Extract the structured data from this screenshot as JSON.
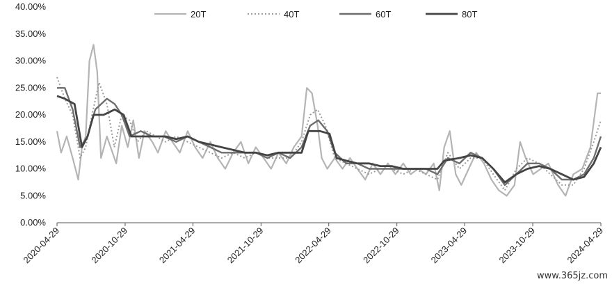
{
  "chart_data": {
    "type": "line",
    "title": "",
    "xlabel": "",
    "ylabel": "",
    "ylim": [
      0,
      0.4
    ],
    "y_ticks": [
      "0.00%",
      "5.00%",
      "10.00%",
      "15.00%",
      "20.00%",
      "25.00%",
      "30.00%",
      "35.00%",
      "40.00%"
    ],
    "x_ticks": [
      "2020-04-29",
      "2020-10-29",
      "2021-04-29",
      "2021-10-29",
      "2022-04-29",
      "2022-10-29",
      "2023-04-29",
      "2023-10-29",
      "2024-04-29"
    ],
    "legend_position": "top",
    "grid": false,
    "series": [
      {
        "name": "20T",
        "color": "#b4b4b4",
        "dash": "solid",
        "points": [
          [
            "2020-04-29",
            0.17
          ],
          [
            "2020-05-10",
            0.13
          ],
          [
            "2020-05-25",
            0.16
          ],
          [
            "2020-06-10",
            0.12
          ],
          [
            "2020-06-25",
            0.08
          ],
          [
            "2020-07-05",
            0.14
          ],
          [
            "2020-07-15",
            0.16
          ],
          [
            "2020-07-25",
            0.3
          ],
          [
            "2020-08-05",
            0.33
          ],
          [
            "2020-08-15",
            0.28
          ],
          [
            "2020-08-25",
            0.12
          ],
          [
            "2020-09-10",
            0.16
          ],
          [
            "2020-09-25",
            0.13
          ],
          [
            "2020-10-05",
            0.11
          ],
          [
            "2020-10-20",
            0.18
          ],
          [
            "2020-11-05",
            0.14
          ],
          [
            "2020-11-20",
            0.19
          ],
          [
            "2020-12-05",
            0.12
          ],
          [
            "2020-12-20",
            0.17
          ],
          [
            "2021-01-10",
            0.15
          ],
          [
            "2021-01-25",
            0.13
          ],
          [
            "2021-02-15",
            0.17
          ],
          [
            "2021-03-05",
            0.15
          ],
          [
            "2021-03-25",
            0.13
          ],
          [
            "2021-04-15",
            0.17
          ],
          [
            "2021-05-05",
            0.14
          ],
          [
            "2021-05-25",
            0.12
          ],
          [
            "2021-06-15",
            0.15
          ],
          [
            "2021-07-05",
            0.12
          ],
          [
            "2021-07-25",
            0.1
          ],
          [
            "2021-08-15",
            0.13
          ],
          [
            "2021-09-05",
            0.15
          ],
          [
            "2021-09-25",
            0.11
          ],
          [
            "2021-10-15",
            0.14
          ],
          [
            "2021-11-05",
            0.12
          ],
          [
            "2021-11-25",
            0.1
          ],
          [
            "2021-12-15",
            0.13
          ],
          [
            "2022-01-05",
            0.11
          ],
          [
            "2022-01-25",
            0.14
          ],
          [
            "2022-02-15",
            0.16
          ],
          [
            "2022-03-01",
            0.25
          ],
          [
            "2022-03-15",
            0.24
          ],
          [
            "2022-03-30",
            0.18
          ],
          [
            "2022-04-10",
            0.12
          ],
          [
            "2022-04-25",
            0.1
          ],
          [
            "2022-05-15",
            0.12
          ],
          [
            "2022-06-05",
            0.1
          ],
          [
            "2022-06-25",
            0.12
          ],
          [
            "2022-07-15",
            0.1
          ],
          [
            "2022-08-05",
            0.08
          ],
          [
            "2022-08-25",
            0.11
          ],
          [
            "2022-09-15",
            0.09
          ],
          [
            "2022-10-05",
            0.11
          ],
          [
            "2022-10-25",
            0.09
          ],
          [
            "2022-11-15",
            0.11
          ],
          [
            "2022-12-05",
            0.09
          ],
          [
            "2022-12-25",
            0.1
          ],
          [
            "2023-01-15",
            0.09
          ],
          [
            "2023-02-05",
            0.11
          ],
          [
            "2023-02-20",
            0.06
          ],
          [
            "2023-03-05",
            0.14
          ],
          [
            "2023-03-20",
            0.17
          ],
          [
            "2023-04-05",
            0.09
          ],
          [
            "2023-04-20",
            0.07
          ],
          [
            "2023-05-10",
            0.1
          ],
          [
            "2023-05-30",
            0.13
          ],
          [
            "2023-06-20",
            0.11
          ],
          [
            "2023-07-10",
            0.08
          ],
          [
            "2023-07-30",
            0.06
          ],
          [
            "2023-08-20",
            0.05
          ],
          [
            "2023-09-10",
            0.07
          ],
          [
            "2023-09-25",
            0.15
          ],
          [
            "2023-10-10",
            0.12
          ],
          [
            "2023-10-30",
            0.09
          ],
          [
            "2023-11-20",
            0.1
          ],
          [
            "2023-12-10",
            0.11
          ],
          [
            "2024-01-05",
            0.07
          ],
          [
            "2024-01-25",
            0.05
          ],
          [
            "2024-02-15",
            0.09
          ],
          [
            "2024-03-10",
            0.1
          ],
          [
            "2024-04-01",
            0.14
          ],
          [
            "2024-04-20",
            0.24
          ],
          [
            "2024-04-29",
            0.24
          ]
        ]
      },
      {
        "name": "40T",
        "color": "#9a9a9a",
        "dash": "dotted",
        "points": [
          [
            "2020-04-29",
            0.27
          ],
          [
            "2020-05-20",
            0.23
          ],
          [
            "2020-06-10",
            0.2
          ],
          [
            "2020-06-30",
            0.12
          ],
          [
            "2020-07-15",
            0.14
          ],
          [
            "2020-08-01",
            0.2
          ],
          [
            "2020-08-20",
            0.26
          ],
          [
            "2020-09-10",
            0.22
          ],
          [
            "2020-09-30",
            0.14
          ],
          [
            "2020-10-20",
            0.2
          ],
          [
            "2020-11-10",
            0.19
          ],
          [
            "2020-12-01",
            0.15
          ],
          [
            "2020-12-25",
            0.17
          ],
          [
            "2021-01-20",
            0.16
          ],
          [
            "2021-02-15",
            0.15
          ],
          [
            "2021-03-15",
            0.16
          ],
          [
            "2021-04-15",
            0.15
          ],
          [
            "2021-05-15",
            0.14
          ],
          [
            "2021-06-15",
            0.13
          ],
          [
            "2021-07-15",
            0.12
          ],
          [
            "2021-08-15",
            0.13
          ],
          [
            "2021-09-15",
            0.12
          ],
          [
            "2021-10-15",
            0.13
          ],
          [
            "2021-11-15",
            0.12
          ],
          [
            "2021-12-15",
            0.12
          ],
          [
            "2022-01-15",
            0.12
          ],
          [
            "2022-02-15",
            0.15
          ],
          [
            "2022-03-10",
            0.2
          ],
          [
            "2022-03-30",
            0.21
          ],
          [
            "2022-04-20",
            0.18
          ],
          [
            "2022-05-15",
            0.12
          ],
          [
            "2022-06-15",
            0.11
          ],
          [
            "2022-07-15",
            0.1
          ],
          [
            "2022-08-15",
            0.09
          ],
          [
            "2022-09-15",
            0.1
          ],
          [
            "2022-10-15",
            0.1
          ],
          [
            "2022-11-15",
            0.09
          ],
          [
            "2022-12-15",
            0.1
          ],
          [
            "2023-01-15",
            0.09
          ],
          [
            "2023-02-15",
            0.08
          ],
          [
            "2023-03-15",
            0.13
          ],
          [
            "2023-04-15",
            0.1
          ],
          [
            "2023-05-15",
            0.12
          ],
          [
            "2023-06-15",
            0.12
          ],
          [
            "2023-07-15",
            0.09
          ],
          [
            "2023-08-15",
            0.06
          ],
          [
            "2023-09-15",
            0.1
          ],
          [
            "2023-10-15",
            0.12
          ],
          [
            "2023-11-15",
            0.11
          ],
          [
            "2023-12-15",
            0.09
          ],
          [
            "2024-01-15",
            0.07
          ],
          [
            "2024-02-15",
            0.07
          ],
          [
            "2024-03-15",
            0.1
          ],
          [
            "2024-04-10",
            0.15
          ],
          [
            "2024-04-29",
            0.19
          ]
        ]
      },
      {
        "name": "60T",
        "color": "#6e6e6e",
        "dash": "solid",
        "points": [
          [
            "2020-04-29",
            0.25
          ],
          [
            "2020-05-20",
            0.25
          ],
          [
            "2020-06-10",
            0.21
          ],
          [
            "2020-06-30",
            0.14
          ],
          [
            "2020-07-20",
            0.16
          ],
          [
            "2020-08-10",
            0.21
          ],
          [
            "2020-09-10",
            0.23
          ],
          [
            "2020-10-01",
            0.22
          ],
          [
            "2020-10-20",
            0.2
          ],
          [
            "2020-11-10",
            0.16
          ],
          [
            "2020-12-10",
            0.17
          ],
          [
            "2021-01-10",
            0.16
          ],
          [
            "2021-02-10",
            0.16
          ],
          [
            "2021-03-15",
            0.15
          ],
          [
            "2021-04-15",
            0.16
          ],
          [
            "2021-05-15",
            0.15
          ],
          [
            "2021-06-15",
            0.14
          ],
          [
            "2021-07-15",
            0.13
          ],
          [
            "2021-08-15",
            0.13
          ],
          [
            "2021-09-15",
            0.13
          ],
          [
            "2021-10-15",
            0.13
          ],
          [
            "2021-11-15",
            0.12
          ],
          [
            "2021-12-15",
            0.13
          ],
          [
            "2022-01-15",
            0.12
          ],
          [
            "2022-02-15",
            0.14
          ],
          [
            "2022-03-10",
            0.18
          ],
          [
            "2022-04-01",
            0.19
          ],
          [
            "2022-04-25",
            0.17
          ],
          [
            "2022-05-15",
            0.13
          ],
          [
            "2022-06-15",
            0.11
          ],
          [
            "2022-07-15",
            0.11
          ],
          [
            "2022-08-15",
            0.1
          ],
          [
            "2022-09-15",
            0.1
          ],
          [
            "2022-10-15",
            0.1
          ],
          [
            "2022-11-15",
            0.1
          ],
          [
            "2022-12-15",
            0.1
          ],
          [
            "2023-01-15",
            0.1
          ],
          [
            "2023-02-15",
            0.09
          ],
          [
            "2023-03-15",
            0.12
          ],
          [
            "2023-04-15",
            0.11
          ],
          [
            "2023-05-15",
            0.13
          ],
          [
            "2023-06-15",
            0.12
          ],
          [
            "2023-07-15",
            0.1
          ],
          [
            "2023-08-15",
            0.07
          ],
          [
            "2023-09-15",
            0.09
          ],
          [
            "2023-10-15",
            0.11
          ],
          [
            "2023-11-15",
            0.11
          ],
          [
            "2023-12-15",
            0.1
          ],
          [
            "2024-01-15",
            0.08
          ],
          [
            "2024-02-15",
            0.08
          ],
          [
            "2024-03-15",
            0.09
          ],
          [
            "2024-04-10",
            0.12
          ],
          [
            "2024-04-29",
            0.16
          ]
        ]
      },
      {
        "name": "80T",
        "color": "#444444",
        "dash": "solid",
        "points": [
          [
            "2020-04-29",
            0.235
          ],
          [
            "2020-05-20",
            0.23
          ],
          [
            "2020-06-15",
            0.22
          ],
          [
            "2020-07-05",
            0.14
          ],
          [
            "2020-07-20",
            0.16
          ],
          [
            "2020-08-05",
            0.2
          ],
          [
            "2020-09-01",
            0.2
          ],
          [
            "2020-10-01",
            0.21
          ],
          [
            "2020-10-25",
            0.2
          ],
          [
            "2020-11-15",
            0.16
          ],
          [
            "2020-12-15",
            0.16
          ],
          [
            "2021-01-15",
            0.16
          ],
          [
            "2021-02-15",
            0.16
          ],
          [
            "2021-03-15",
            0.155
          ],
          [
            "2021-04-15",
            0.16
          ],
          [
            "2021-05-15",
            0.15
          ],
          [
            "2021-06-15",
            0.145
          ],
          [
            "2021-07-15",
            0.14
          ],
          [
            "2021-08-15",
            0.135
          ],
          [
            "2021-09-15",
            0.13
          ],
          [
            "2021-10-15",
            0.13
          ],
          [
            "2021-11-15",
            0.125
          ],
          [
            "2021-12-15",
            0.13
          ],
          [
            "2022-01-15",
            0.13
          ],
          [
            "2022-02-15",
            0.13
          ],
          [
            "2022-03-05",
            0.17
          ],
          [
            "2022-04-05",
            0.17
          ],
          [
            "2022-05-01",
            0.165
          ],
          [
            "2022-05-20",
            0.12
          ],
          [
            "2022-06-15",
            0.115
          ],
          [
            "2022-07-15",
            0.11
          ],
          [
            "2022-08-15",
            0.11
          ],
          [
            "2022-09-15",
            0.105
          ],
          [
            "2022-10-15",
            0.105
          ],
          [
            "2022-11-15",
            0.1
          ],
          [
            "2022-12-15",
            0.1
          ],
          [
            "2023-01-15",
            0.1
          ],
          [
            "2023-02-15",
            0.1
          ],
          [
            "2023-03-05",
            0.115
          ],
          [
            "2023-04-15",
            0.12
          ],
          [
            "2023-05-15",
            0.125
          ],
          [
            "2023-06-15",
            0.12
          ],
          [
            "2023-07-15",
            0.1
          ],
          [
            "2023-08-15",
            0.075
          ],
          [
            "2023-09-15",
            0.09
          ],
          [
            "2023-10-15",
            0.1
          ],
          [
            "2023-11-15",
            0.105
          ],
          [
            "2023-12-15",
            0.1
          ],
          [
            "2024-01-15",
            0.09
          ],
          [
            "2024-02-15",
            0.08
          ],
          [
            "2024-03-15",
            0.085
          ],
          [
            "2024-04-10",
            0.11
          ],
          [
            "2024-04-29",
            0.14
          ]
        ]
      }
    ]
  },
  "watermark": "www.365jz.com"
}
